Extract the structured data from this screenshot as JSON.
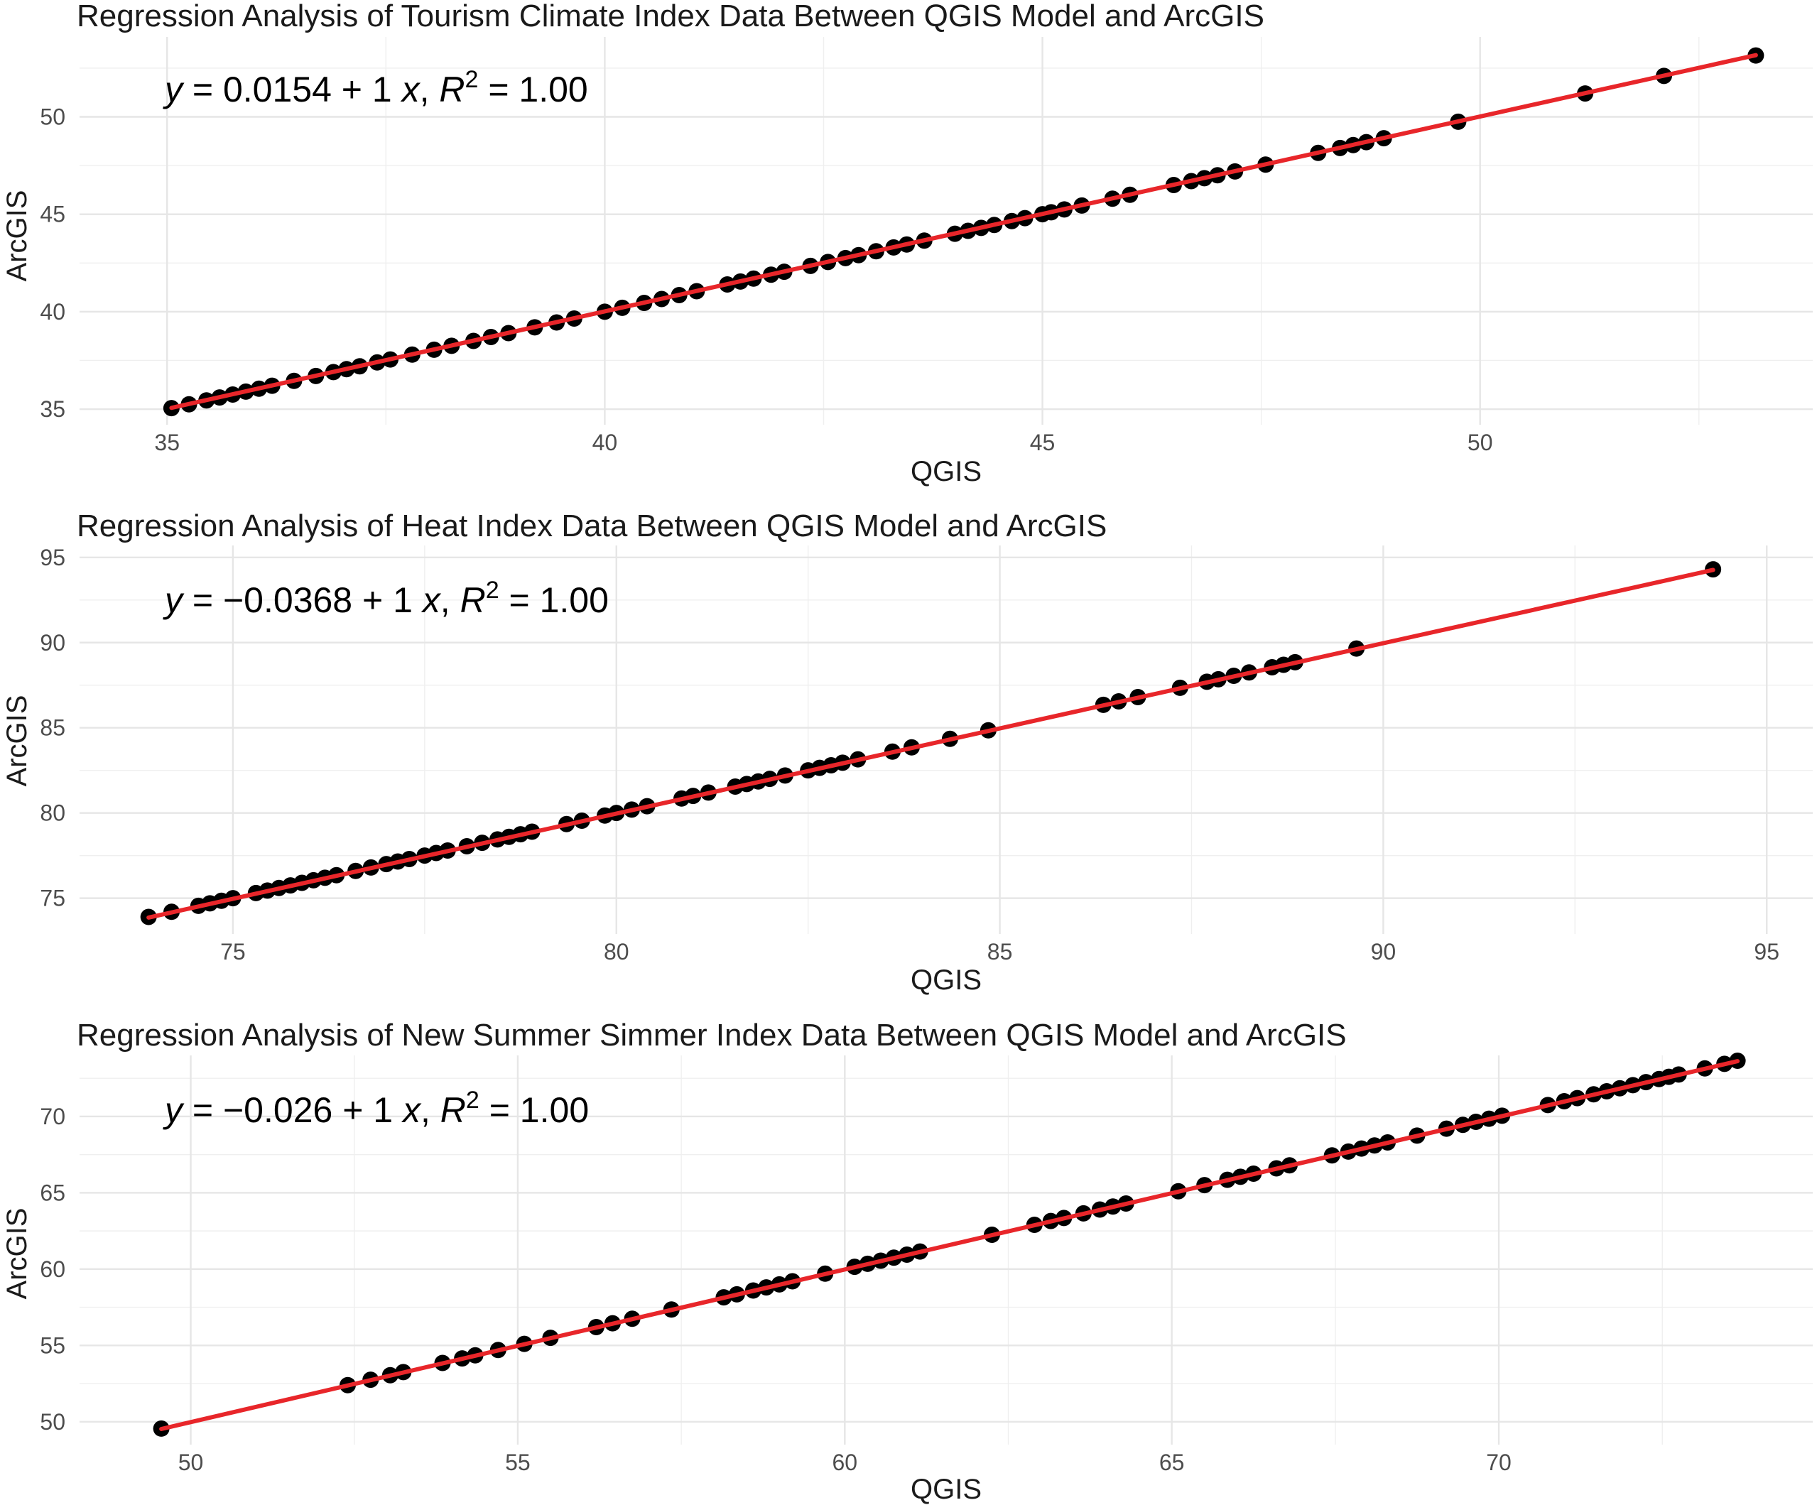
{
  "colors": {
    "point": "#000000",
    "regression_line": "#e8262a"
  },
  "chart_data": [
    {
      "type": "scatter",
      "title": "Regression Analysis of Tourism Climate Index Data Between QGIS Model and ArcGIS",
      "xlabel": "QGIS",
      "ylabel": "ArcGIS",
      "xlim": [
        34.0,
        53.8
      ],
      "ylim": [
        34.2,
        54.1
      ],
      "xticks": [
        35,
        40,
        45,
        50
      ],
      "yticks": [
        35,
        40,
        45,
        50
      ],
      "equation": {
        "y": "y",
        "mid": " = 0.0154 + 1 ",
        "x": "x",
        "sep": ", ",
        "r": "R",
        "sup": "2",
        "rhs": " = 1.00"
      },
      "regression": {
        "intercept": 0.0154,
        "slope": 1
      },
      "x": [
        35.05,
        35.25,
        35.45,
        35.6,
        35.75,
        35.9,
        36.05,
        36.2,
        36.45,
        36.7,
        36.9,
        37.05,
        37.2,
        37.4,
        37.55,
        37.8,
        38.05,
        38.25,
        38.5,
        38.7,
        38.9,
        39.2,
        39.45,
        39.65,
        40.0,
        40.2,
        40.45,
        40.65,
        40.85,
        41.05,
        41.4,
        41.55,
        41.7,
        41.9,
        42.05,
        42.35,
        42.55,
        42.75,
        42.9,
        43.1,
        43.3,
        43.45,
        43.65,
        44.0,
        44.15,
        44.3,
        44.45,
        44.65,
        44.8,
        45.0,
        45.1,
        45.25,
        45.45,
        45.8,
        46.0,
        46.5,
        46.7,
        46.85,
        47.0,
        47.2,
        47.55,
        48.15,
        48.4,
        48.55,
        48.7,
        48.9,
        49.75,
        51.2,
        52.1,
        53.15
      ],
      "y": [
        35.05,
        35.25,
        35.45,
        35.6,
        35.75,
        35.9,
        36.05,
        36.2,
        36.45,
        36.7,
        36.9,
        37.05,
        37.2,
        37.4,
        37.55,
        37.8,
        38.05,
        38.25,
        38.5,
        38.7,
        38.9,
        39.2,
        39.45,
        39.65,
        40.0,
        40.2,
        40.45,
        40.65,
        40.85,
        41.05,
        41.4,
        41.55,
        41.7,
        41.9,
        42.05,
        42.35,
        42.55,
        42.75,
        42.9,
        43.1,
        43.3,
        43.45,
        43.65,
        44.0,
        44.15,
        44.3,
        44.45,
        44.65,
        44.8,
        45.0,
        45.1,
        45.25,
        45.45,
        45.8,
        46.0,
        46.5,
        46.7,
        46.85,
        47.0,
        47.2,
        47.55,
        48.15,
        48.4,
        48.55,
        48.7,
        48.9,
        49.75,
        51.2,
        52.1,
        53.15
      ]
    },
    {
      "type": "scatter",
      "title": "Regression Analysis of Heat Index Data Between QGIS Model and ArcGIS",
      "xlabel": "QGIS",
      "ylabel": "ArcGIS",
      "xlim": [
        73.0,
        95.6
      ],
      "ylim": [
        72.9,
        95.7
      ],
      "xticks": [
        75,
        80,
        85,
        90,
        95
      ],
      "yticks": [
        75,
        80,
        85,
        90,
        95
      ],
      "equation": {
        "y": "y",
        "mid": " = −0.0368 + 1 ",
        "x": "x",
        "sep": ", ",
        "r": "R",
        "sup": "2",
        "rhs": " = 1.00"
      },
      "regression": {
        "intercept": -0.0368,
        "slope": 1
      },
      "x": [
        73.9,
        74.2,
        74.55,
        74.7,
        74.85,
        75.0,
        75.3,
        75.45,
        75.6,
        75.75,
        75.9,
        76.05,
        76.2,
        76.35,
        76.6,
        76.8,
        77.0,
        77.15,
        77.3,
        77.5,
        77.65,
        77.8,
        78.05,
        78.25,
        78.45,
        78.6,
        78.75,
        78.9,
        79.35,
        79.55,
        79.85,
        80.0,
        80.2,
        80.4,
        80.85,
        81.0,
        81.2,
        81.55,
        81.7,
        81.85,
        82.0,
        82.2,
        82.5,
        82.65,
        82.8,
        82.95,
        83.15,
        83.6,
        83.85,
        84.35,
        84.85,
        86.35,
        86.55,
        86.8,
        87.35,
        87.7,
        87.85,
        88.05,
        88.25,
        88.55,
        88.7,
        88.85,
        89.65,
        94.3
      ],
      "y": [
        73.9,
        74.2,
        74.55,
        74.7,
        74.85,
        75.0,
        75.3,
        75.45,
        75.6,
        75.75,
        75.9,
        76.05,
        76.2,
        76.35,
        76.6,
        76.8,
        77.0,
        77.15,
        77.3,
        77.5,
        77.65,
        77.8,
        78.05,
        78.25,
        78.45,
        78.6,
        78.75,
        78.9,
        79.35,
        79.55,
        79.85,
        80.0,
        80.2,
        80.4,
        80.85,
        81.0,
        81.2,
        81.55,
        81.7,
        81.85,
        82.0,
        82.2,
        82.5,
        82.65,
        82.8,
        82.95,
        83.15,
        83.6,
        83.85,
        84.35,
        84.85,
        86.35,
        86.55,
        86.8,
        87.35,
        87.7,
        87.85,
        88.05,
        88.25,
        88.55,
        88.7,
        88.85,
        89.65,
        94.3
      ]
    },
    {
      "type": "scatter",
      "title": "Regression Analysis of New Summer Simmer Index Data Between QGIS Model and ArcGIS",
      "xlabel": "QGIS",
      "ylabel": "ArcGIS",
      "xlim": [
        48.3,
        74.8
      ],
      "ylim": [
        48.5,
        74.0
      ],
      "xticks": [
        50,
        55,
        60,
        65,
        70
      ],
      "yticks": [
        50,
        55,
        60,
        65,
        70
      ],
      "equation": {
        "y": "y",
        "mid": " = −0.026 + 1 ",
        "x": "x",
        "sep": ", ",
        "r": "R",
        "sup": "2",
        "rhs": " = 1.00"
      },
      "regression": {
        "intercept": -0.026,
        "slope": 1
      },
      "x": [
        49.55,
        52.4,
        52.75,
        53.05,
        53.25,
        53.85,
        54.15,
        54.35,
        54.7,
        55.1,
        55.5,
        56.2,
        56.45,
        56.75,
        57.35,
        58.15,
        58.35,
        58.6,
        58.8,
        59.0,
        59.2,
        59.7,
        60.15,
        60.35,
        60.55,
        60.75,
        60.95,
        61.15,
        62.25,
        62.9,
        63.15,
        63.35,
        63.65,
        63.9,
        64.1,
        64.3,
        65.1,
        65.5,
        65.85,
        66.05,
        66.25,
        66.6,
        66.8,
        67.45,
        67.7,
        67.9,
        68.1,
        68.3,
        68.75,
        69.2,
        69.45,
        69.65,
        69.85,
        70.05,
        70.75,
        71.0,
        71.2,
        71.45,
        71.65,
        71.85,
        72.05,
        72.25,
        72.45,
        72.6,
        72.75,
        73.15,
        73.45,
        73.65
      ],
      "y": [
        49.55,
        52.4,
        52.75,
        53.05,
        53.25,
        53.85,
        54.15,
        54.35,
        54.7,
        55.1,
        55.5,
        56.2,
        56.45,
        56.75,
        57.35,
        58.15,
        58.35,
        58.6,
        58.8,
        59.0,
        59.2,
        59.7,
        60.15,
        60.35,
        60.55,
        60.75,
        60.95,
        61.15,
        62.25,
        62.9,
        63.15,
        63.35,
        63.65,
        63.9,
        64.1,
        64.3,
        65.1,
        65.5,
        65.85,
        66.05,
        66.25,
        66.6,
        66.8,
        67.45,
        67.7,
        67.9,
        68.1,
        68.3,
        68.75,
        69.2,
        69.45,
        69.65,
        69.85,
        70.05,
        70.75,
        71.0,
        71.2,
        71.45,
        71.65,
        71.85,
        72.05,
        72.25,
        72.45,
        72.6,
        72.75,
        73.15,
        73.45,
        73.65
      ]
    }
  ]
}
